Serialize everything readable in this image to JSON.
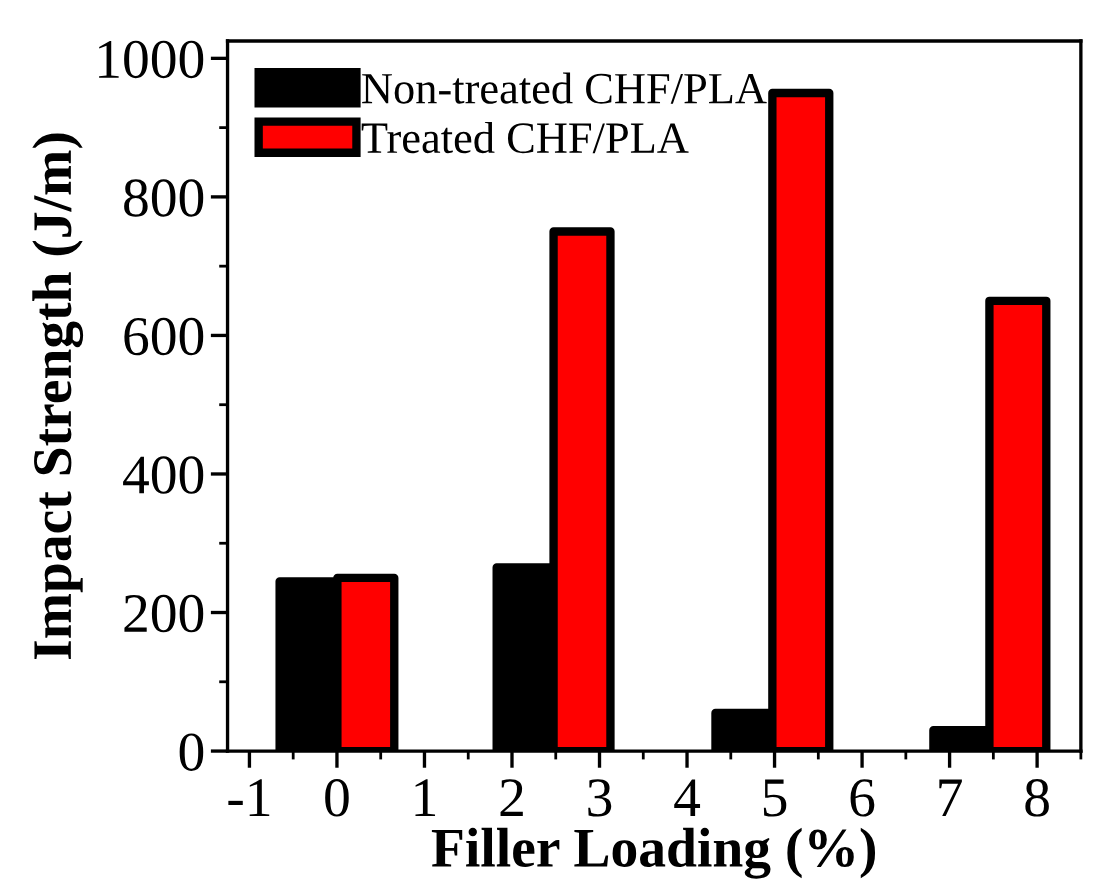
{
  "chart_data": {
    "type": "bar",
    "xlabel": "Filler Loading (%)",
    "ylabel": "Impact Strength (J/m)",
    "series": [
      {
        "name": "Non-treated CHF/PLA",
        "color": "#000000",
        "x": [
          -0.33,
          2.15,
          4.65,
          7.14
        ],
        "values": [
          245,
          265,
          55,
          30
        ]
      },
      {
        "name": "Treated CHF/PLA",
        "color": "#ff0000",
        "x": [
          0.33,
          2.8,
          5.3,
          7.78
        ],
        "values": [
          250,
          750,
          950,
          650
        ]
      }
    ],
    "xlim": [
      -1.25,
      8.5
    ],
    "xticks": [
      -1,
      0,
      1,
      2,
      3,
      4,
      5,
      6,
      7,
      8
    ],
    "ylim": [
      0,
      1025
    ],
    "yticks": [
      0,
      200,
      400,
      600,
      800,
      1000
    ],
    "grid": false,
    "legend": "top left"
  }
}
